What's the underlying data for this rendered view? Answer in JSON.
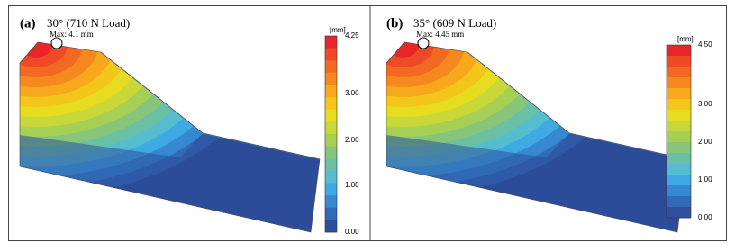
{
  "panels": [
    {
      "label": "(a)",
      "title": "30° (710 N Load)",
      "max_label": "Max: 4.1 mm",
      "colorbar": {
        "unit": "[mm]",
        "ticks": [
          "4.25",
          "3.00",
          "2.00",
          "1.00",
          "0.00"
        ]
      }
    },
    {
      "label": "(b)",
      "title": "35° (609 N Load)",
      "max_label": "Max: 4.45 mm",
      "colorbar": {
        "unit": "[mm]",
        "ticks": [
          "4.50",
          "3.00",
          "2.00",
          "1.00",
          "0.00"
        ]
      }
    }
  ]
}
